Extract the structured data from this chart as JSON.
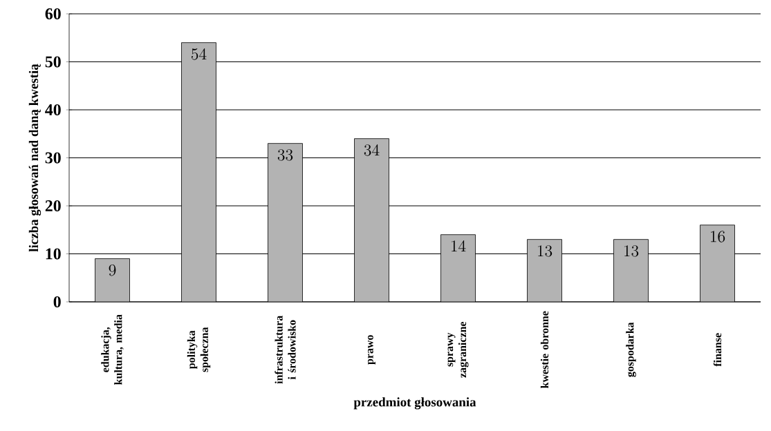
{
  "chart_data": {
    "type": "bar",
    "xlabel": "przedmiot głosowania",
    "ylabel": "liczba głosowań nad daną kwestią",
    "categories": [
      "edukacja, kultura, media",
      "polityka społeczna",
      "infrastruktura i środowisko",
      "prawo",
      "sprawy zagraniczne",
      "kwestie obronne",
      "gospodarka",
      "finanse"
    ],
    "values": [
      9,
      54,
      33,
      34,
      14,
      13,
      13,
      16
    ],
    "color": "#b3b3b3",
    "ylim": [
      0,
      60
    ],
    "yticks": [
      0,
      10,
      20,
      30,
      40,
      50,
      60
    ],
    "grid": "y",
    "data_labels": true
  }
}
